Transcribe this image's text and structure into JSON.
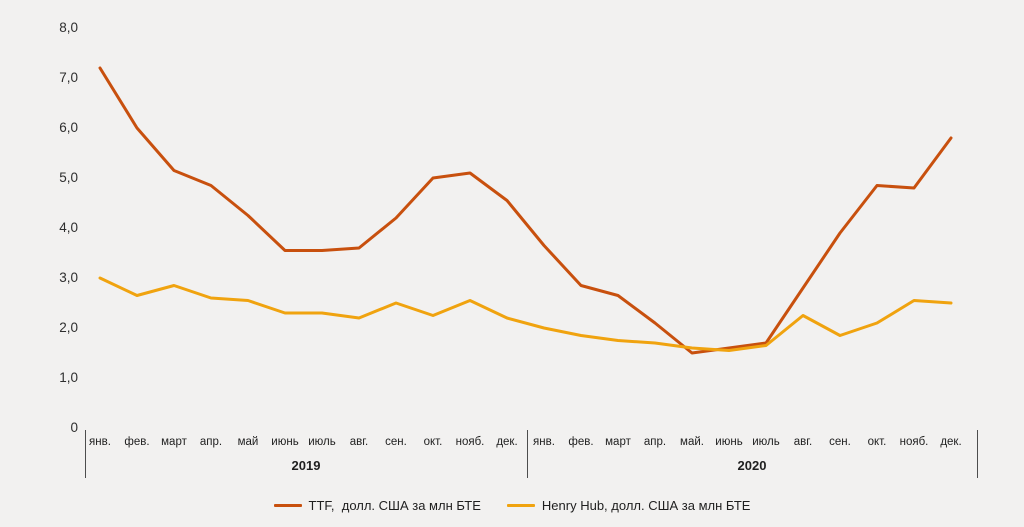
{
  "chart_data": {
    "type": "line",
    "title": "",
    "grid": false,
    "legend_position": "bottom",
    "ylim": [
      0,
      8
    ],
    "y_ticks": [
      {
        "label": "8,0",
        "value": 8
      },
      {
        "label": "7,0",
        "value": 7
      },
      {
        "label": "6,0",
        "value": 6
      },
      {
        "label": "5,0",
        "value": 5
      },
      {
        "label": "4,0",
        "value": 4
      },
      {
        "label": "3,0",
        "value": 3
      },
      {
        "label": "2,0",
        "value": 2
      },
      {
        "label": "1,0",
        "value": 1
      },
      {
        "label": "0",
        "value": 0
      }
    ],
    "x_groups": [
      {
        "year": "2019",
        "months": [
          "янв.",
          "фев.",
          "март",
          "апр.",
          "май",
          "июнь",
          "июль",
          "авг.",
          "сен.",
          "окт.",
          "нояб.",
          "дек."
        ]
      },
      {
        "year": "2020",
        "months": [
          "янв.",
          "фев.",
          "март",
          "апр.",
          "май.",
          "июнь",
          "июль",
          "авг.",
          "сен.",
          "окт.",
          "нояб.",
          "дек."
        ]
      }
    ],
    "series": [
      {
        "name": "TTF,  долл. США за млн БТЕ",
        "color": "#C8500E",
        "values": [
          7.2,
          6.0,
          5.15,
          4.85,
          4.25,
          3.55,
          3.55,
          3.6,
          4.2,
          5.0,
          5.1,
          4.55,
          3.65,
          2.85,
          2.65,
          2.1,
          1.5,
          1.6,
          1.7,
          2.8,
          3.9,
          4.85,
          4.8,
          5.8
        ]
      },
      {
        "name": "Henry Hub, долл. США за млн БТЕ",
        "color": "#F0A30F",
        "values": [
          3.0,
          2.65,
          2.85,
          2.6,
          2.55,
          2.3,
          2.3,
          2.2,
          2.5,
          2.25,
          2.55,
          2.2,
          2.0,
          1.85,
          1.75,
          1.7,
          1.6,
          1.55,
          1.65,
          2.25,
          1.85,
          2.1,
          2.55,
          2.5
        ]
      }
    ]
  },
  "colors": {
    "background": "#F2F1F0",
    "text": "#1F1F1F",
    "axis_line": "#4D4D4D"
  }
}
